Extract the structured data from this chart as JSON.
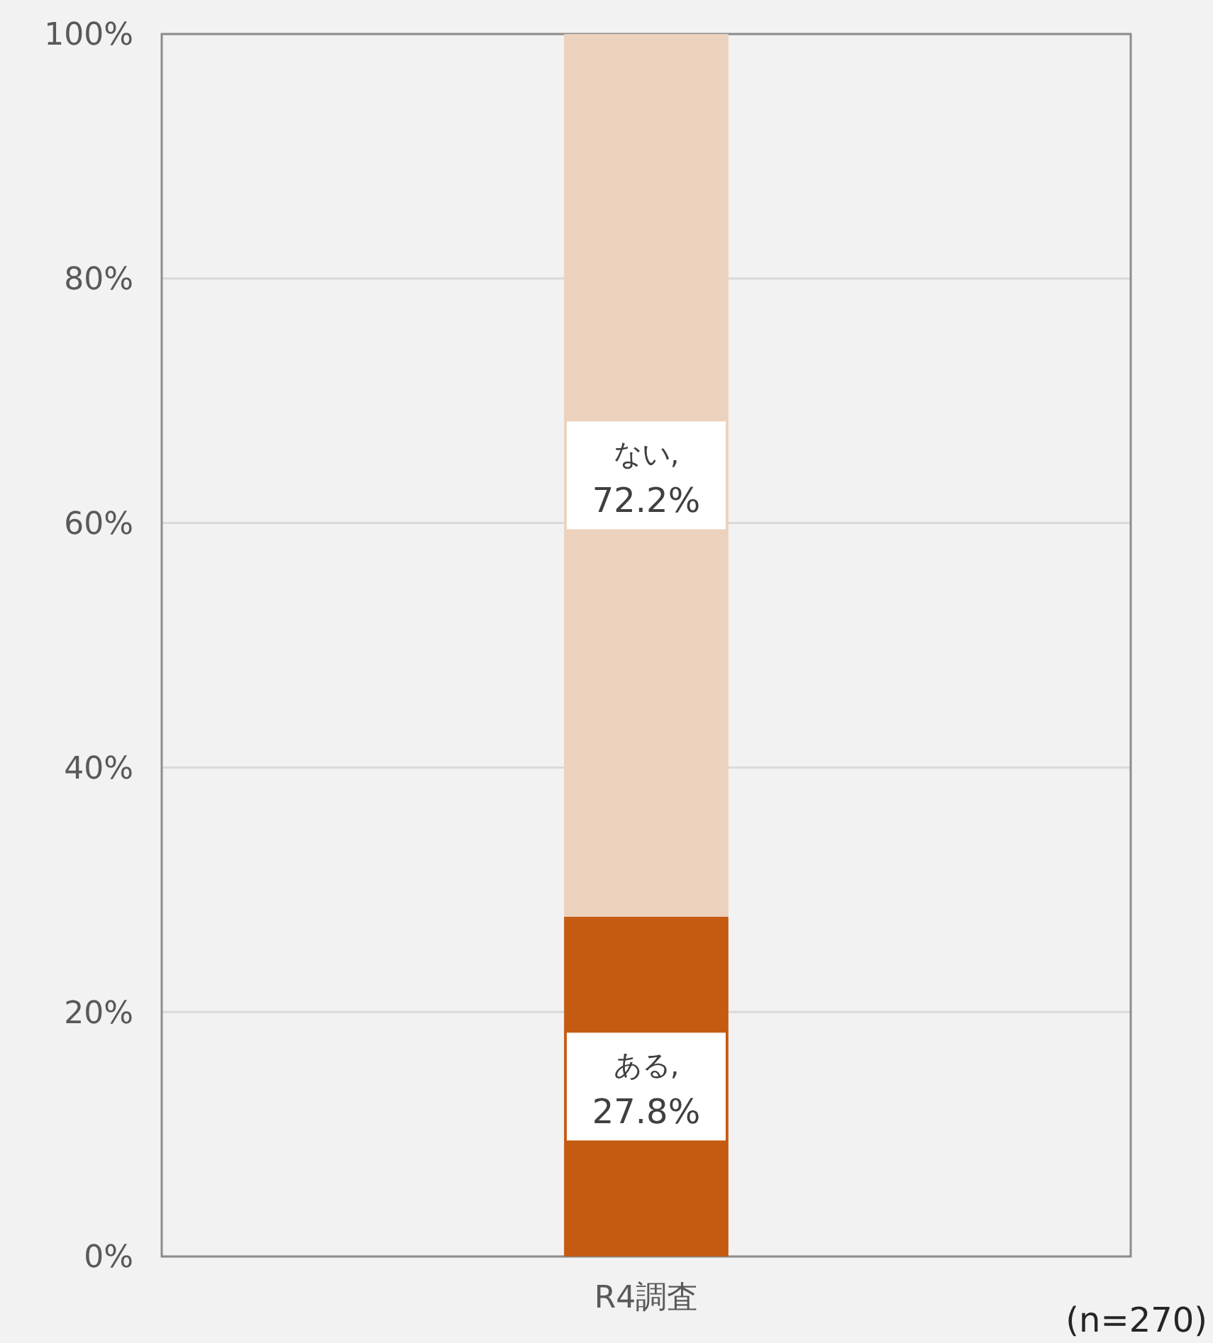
{
  "chart_data": {
    "type": "bar",
    "stacked": true,
    "categories": [
      "R4調査"
    ],
    "series": [
      {
        "color": "#c55a11",
        "values": [
          27.8
        ],
        "value_labels": [
          "ある, 27.8%"
        ]
      },
      {
        "color": "#ecd2bd",
        "values": [
          72.2
        ],
        "value_labels": [
          "ない, 72.2%"
        ]
      }
    ],
    "ylim": [
      0,
      100
    ],
    "yticks": [
      {
        "value": 0,
        "label": "0%"
      },
      {
        "value": 20,
        "label": "20%"
      },
      {
        "value": 40,
        "label": "40%"
      },
      {
        "value": 60,
        "label": "60%"
      },
      {
        "value": 80,
        "label": "80%"
      },
      {
        "value": 100,
        "label": "100%"
      }
    ],
    "grid": "y",
    "annotations": [
      "(n=270)"
    ]
  }
}
